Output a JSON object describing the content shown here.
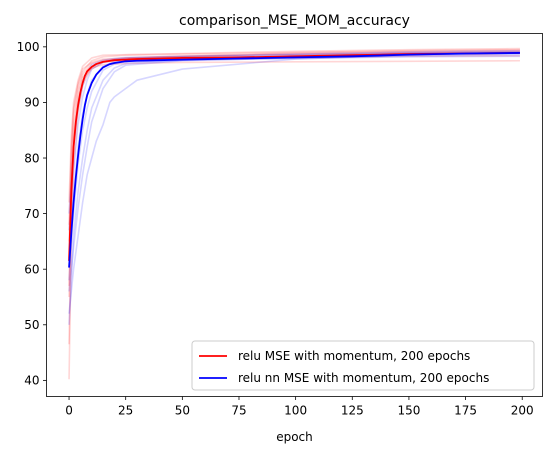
{
  "chart_data": {
    "type": "line",
    "title": "comparison_MSE_MOM_accuracy",
    "xlabel": "epoch",
    "ylabel": "",
    "xlim": [
      -9.95,
      208.95
    ],
    "ylim": [
      37.1,
      102.4
    ],
    "xticks": [
      0,
      25,
      50,
      75,
      100,
      125,
      150,
      175,
      200
    ],
    "yticks": [
      40,
      50,
      60,
      70,
      80,
      90,
      100
    ],
    "xtick_labels": [
      "0",
      "25",
      "50",
      "75",
      "100",
      "125",
      "150",
      "175",
      "200"
    ],
    "ytick_labels": [
      "40",
      "50",
      "60",
      "70",
      "80",
      "90",
      "100"
    ],
    "grid": false,
    "legend": "lower-right",
    "series": [
      {
        "name": "relu MSE with momentum, 200 epochs",
        "color": "#ff0000",
        "x": [
          0,
          1,
          2,
          3,
          4,
          5,
          6,
          7,
          8,
          10,
          12,
          15,
          20,
          25,
          30,
          40,
          50,
          75,
          100,
          125,
          150,
          175,
          199
        ],
        "y": [
          61.5,
          74.0,
          82.0,
          86.5,
          89.5,
          91.8,
          93.5,
          94.8,
          95.6,
          96.4,
          96.9,
          97.3,
          97.6,
          97.7,
          97.8,
          97.9,
          98.0,
          98.1,
          98.3,
          98.5,
          98.7,
          98.8,
          98.9
        ]
      },
      {
        "name": "relu nn MSE with momentum, 200 epochs",
        "color": "#0000ff",
        "x": [
          0,
          1,
          2,
          3,
          4,
          5,
          6,
          7,
          8,
          10,
          12,
          15,
          18,
          20,
          25,
          30,
          40,
          50,
          75,
          100,
          125,
          150,
          175,
          199
        ],
        "y": [
          60.3,
          66.5,
          72.0,
          76.5,
          80.5,
          84.0,
          87.0,
          89.5,
          91.3,
          93.5,
          95.0,
          96.3,
          96.9,
          97.1,
          97.4,
          97.5,
          97.6,
          97.7,
          97.9,
          98.1,
          98.3,
          98.6,
          98.8,
          98.9
        ]
      }
    ],
    "background_runs": [
      {
        "color": "#ff0000",
        "x": [
          0,
          1,
          2,
          4,
          6,
          10,
          15,
          25,
          50,
          100,
          150,
          199
        ],
        "y": [
          46.5,
          70.0,
          82.0,
          90.0,
          94.0,
          96.0,
          97.2,
          97.6,
          97.8,
          98.0,
          98.3,
          98.4
        ]
      },
      {
        "color": "#ff0000",
        "x": [
          0,
          1,
          2,
          4,
          6,
          10,
          15,
          25,
          50,
          100,
          150,
          199
        ],
        "y": [
          40.2,
          65.0,
          78.0,
          88.0,
          93.0,
          96.5,
          97.5,
          97.9,
          98.2,
          98.6,
          98.9,
          99.1
        ]
      },
      {
        "color": "#ff0000",
        "x": [
          0,
          1,
          2,
          4,
          6,
          10,
          15,
          25,
          50,
          100,
          150,
          199
        ],
        "y": [
          57.0,
          78.0,
          86.0,
          92.0,
          95.0,
          97.0,
          97.6,
          98.0,
          98.3,
          98.9,
          99.2,
          99.4
        ]
      },
      {
        "color": "#ff0000",
        "x": [
          0,
          1,
          2,
          4,
          6,
          10,
          15,
          25,
          50,
          100,
          150,
          199
        ],
        "y": [
          65.0,
          80.0,
          88.0,
          93.0,
          95.5,
          97.5,
          98.2,
          98.5,
          98.7,
          99.0,
          99.3,
          99.5
        ]
      },
      {
        "color": "#ff0000",
        "x": [
          0,
          1,
          2,
          4,
          6,
          10,
          15,
          25,
          50,
          100,
          150,
          199
        ],
        "y": [
          72.0,
          84.0,
          90.0,
          94.0,
          96.5,
          98.0,
          98.5,
          98.6,
          98.8,
          99.2,
          99.5,
          99.7
        ]
      },
      {
        "color": "#ff0000",
        "x": [
          0,
          1,
          2,
          4,
          6,
          10,
          15,
          25,
          50,
          100,
          150,
          199
        ],
        "y": [
          55.0,
          72.0,
          84.0,
          91.0,
          94.5,
          96.2,
          96.8,
          97.0,
          97.2,
          97.3,
          97.4,
          97.5
        ]
      },
      {
        "color": "#ff0000",
        "x": [
          0,
          1,
          2,
          4,
          6,
          10,
          15,
          25,
          50,
          100,
          150,
          199
        ],
        "y": [
          68.0,
          82.0,
          89.0,
          93.5,
          96.0,
          97.2,
          97.8,
          98.0,
          98.4,
          98.7,
          99.0,
          99.2
        ]
      },
      {
        "color": "#0000ff",
        "x": [
          0,
          2,
          4,
          6,
          8,
          10,
          12,
          15,
          18,
          20,
          25,
          30,
          50,
          100,
          150,
          199
        ],
        "y": [
          52.0,
          60.0,
          66.0,
          72.0,
          77.0,
          80.0,
          83.0,
          86.0,
          90.0,
          91.0,
          92.5,
          94.0,
          96.0,
          97.8,
          98.5,
          98.8
        ]
      },
      {
        "color": "#0000ff",
        "x": [
          0,
          2,
          4,
          6,
          8,
          10,
          15,
          20,
          25,
          50,
          100,
          150,
          199
        ],
        "y": [
          50.0,
          66.0,
          74.0,
          80.0,
          85.0,
          89.0,
          94.0,
          96.2,
          97.0,
          97.6,
          98.2,
          98.6,
          98.9
        ]
      },
      {
        "color": "#0000ff",
        "x": [
          0,
          2,
          4,
          6,
          8,
          10,
          15,
          20,
          25,
          50,
          100,
          150,
          199
        ],
        "y": [
          62.0,
          74.0,
          82.0,
          88.0,
          91.5,
          94.0,
          96.5,
          97.3,
          97.6,
          97.9,
          98.4,
          98.8,
          99.0
        ]
      },
      {
        "color": "#0000ff",
        "x": [
          0,
          2,
          4,
          6,
          8,
          10,
          15,
          20,
          25,
          50,
          100,
          150,
          199
        ],
        "y": [
          67.0,
          78.0,
          86.0,
          91.0,
          94.0,
          96.0,
          97.2,
          97.7,
          97.9,
          98.2,
          98.6,
          98.9,
          99.1
        ]
      },
      {
        "color": "#0000ff",
        "x": [
          0,
          2,
          4,
          6,
          8,
          10,
          15,
          20,
          25,
          50,
          100,
          150,
          199
        ],
        "y": [
          56.0,
          64.0,
          71.0,
          77.0,
          82.0,
          86.5,
          92.5,
          95.5,
          96.7,
          97.5,
          98.0,
          98.4,
          98.6
        ]
      },
      {
        "color": "#0000ff",
        "x": [
          0,
          2,
          4,
          6,
          8,
          10,
          15,
          20,
          25,
          50,
          100,
          150,
          199
        ],
        "y": [
          70.0,
          82.0,
          89.0,
          93.0,
          95.5,
          96.8,
          97.6,
          97.9,
          98.1,
          98.3,
          98.7,
          99.1,
          99.3
        ]
      },
      {
        "color": "#0000ff",
        "x": [
          0,
          2,
          4,
          6,
          8,
          10,
          15,
          20,
          25,
          50,
          100,
          150,
          199
        ],
        "y": [
          58.0,
          70.0,
          79.0,
          85.0,
          89.0,
          92.0,
          95.8,
          96.9,
          97.3,
          97.6,
          97.9,
          98.2,
          98.3
        ]
      }
    ]
  }
}
